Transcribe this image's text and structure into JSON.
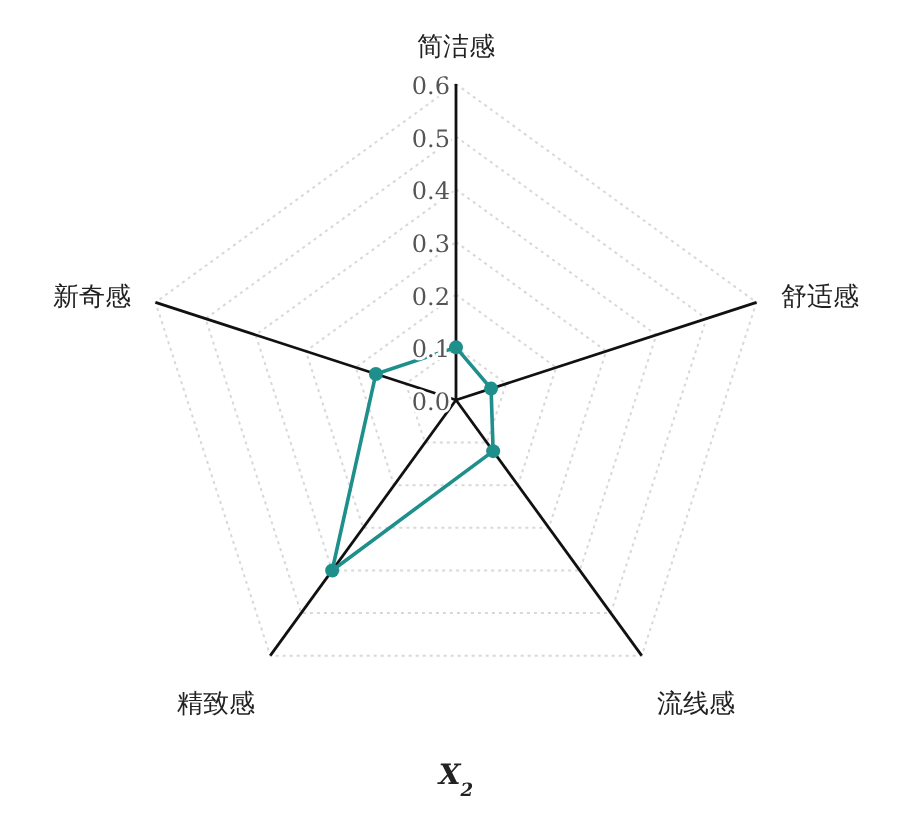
{
  "chart_data": {
    "type": "radar",
    "xlabel": "X$_{2}$",
    "categories": [
      "简洁感",
      "舒适感",
      "流线感",
      "精致感",
      "新奇感"
    ],
    "series": [
      {
        "color": "#1f8f8c",
        "values": [
          0.1,
          0.07,
          0.12,
          0.4,
          0.16
        ]
      }
    ],
    "ylim": [
      0,
      0.6
    ],
    "yticks": [
      {
        "value": 0,
        "label": "0.0"
      },
      {
        "value": 0.1,
        "label": "0.1"
      },
      {
        "value": 0.2,
        "label": "0.2"
      },
      {
        "value": 0.3,
        "label": "0.3"
      },
      {
        "value": 0.4,
        "label": "0.4"
      },
      {
        "value": 0.5,
        "label": "0.5"
      },
      {
        "value": 0.6,
        "label": "0.6"
      }
    ],
    "grid": true,
    "marker": "circle"
  }
}
